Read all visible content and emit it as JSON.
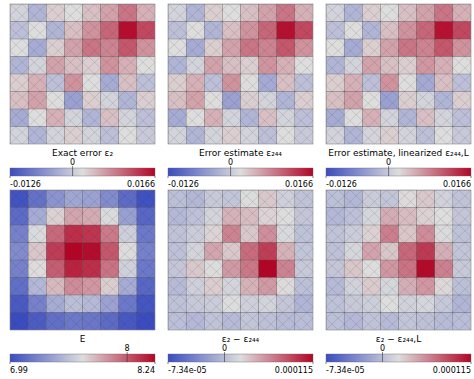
{
  "chart_data": [
    {
      "type": "heatmap",
      "title": "Exact error ε₂",
      "cells": [
        [
          0.001,
          -0.002,
          0.003,
          0.002,
          0.004,
          0.006,
          0.009,
          0.005
        ],
        [
          -0.001,
          0.002,
          -0.002,
          0.004,
          0.007,
          0.01,
          0.016,
          0.012
        ],
        [
          0.002,
          -0.003,
          0.003,
          0.006,
          0.009,
          0.008,
          0.011,
          0.007
        ],
        [
          -0.002,
          0.001,
          0.006,
          0.004,
          0.003,
          0.007,
          0.005,
          0.002
        ],
        [
          0.003,
          0.005,
          -0.001,
          0.007,
          0.002,
          -0.003,
          0.004,
          -0.001
        ],
        [
          0.004,
          0.006,
          0.002,
          -0.004,
          0.003,
          0.001,
          -0.002,
          0.003
        ],
        [
          -0.003,
          0.002,
          0.005,
          0.001,
          -0.002,
          0.004,
          0.001,
          -0.001
        ],
        [
          0.001,
          -0.002,
          0.001,
          0.003,
          0.001,
          -0.001,
          0.002,
          0.0
        ]
      ],
      "colorbar": {
        "range": [
          -0.0126,
          0.0166
        ],
        "ticks": [
          -0.0126,
          0,
          0.0166
        ]
      }
    },
    {
      "type": "heatmap",
      "title": "Error estimate ε₂₄₄",
      "cells": [
        [
          0.001,
          -0.002,
          0.003,
          0.002,
          0.004,
          0.006,
          0.009,
          0.005
        ],
        [
          -0.001,
          0.002,
          -0.002,
          0.004,
          0.007,
          0.01,
          0.0158,
          0.012
        ],
        [
          0.002,
          -0.003,
          0.003,
          0.006,
          0.009,
          0.008,
          0.011,
          0.007
        ],
        [
          -0.002,
          0.001,
          0.006,
          0.004,
          0.003,
          0.0069,
          0.005,
          0.002
        ],
        [
          0.003,
          0.005,
          -0.001,
          0.007,
          0.002,
          -0.0031,
          0.004,
          -0.001
        ],
        [
          0.004,
          0.006,
          0.002,
          -0.004,
          0.003,
          0.001,
          -0.002,
          0.003
        ],
        [
          -0.003,
          0.002,
          0.005,
          0.001,
          -0.002,
          0.004,
          0.001,
          -0.001
        ],
        [
          0.001,
          -0.002,
          0.001,
          0.003,
          0.001,
          -0.001,
          0.002,
          0.0
        ]
      ],
      "colorbar": {
        "range": [
          -0.0126,
          0.0166
        ],
        "ticks": [
          -0.0126,
          0,
          0.0166
        ]
      }
    },
    {
      "type": "heatmap",
      "title": "Error estimate, linearized ε₂₄₄,L",
      "cells": [
        [
          0.001,
          -0.002,
          0.003,
          0.002,
          0.004,
          0.006,
          0.009,
          0.005
        ],
        [
          -0.001,
          0.002,
          -0.002,
          0.004,
          0.007,
          0.01,
          0.0157,
          0.012
        ],
        [
          0.002,
          -0.003,
          0.003,
          0.006,
          0.009,
          0.008,
          0.011,
          0.007
        ],
        [
          -0.002,
          0.001,
          0.006,
          0.004,
          0.003,
          0.0068,
          0.005,
          0.002
        ],
        [
          0.003,
          0.005,
          -0.001,
          0.007,
          0.002,
          -0.0032,
          0.004,
          -0.001
        ],
        [
          0.004,
          0.006,
          0.002,
          -0.004,
          0.003,
          0.001,
          -0.002,
          0.003
        ],
        [
          -0.003,
          0.002,
          0.005,
          0.001,
          -0.002,
          0.004,
          0.001,
          -0.001
        ],
        [
          0.001,
          -0.002,
          0.001,
          0.003,
          0.001,
          -0.001,
          0.002,
          0.0
        ]
      ],
      "colorbar": {
        "range": [
          -0.0126,
          0.0166
        ],
        "ticks": [
          -0.0126,
          0,
          0.0166
        ]
      }
    },
    {
      "type": "heatmap",
      "title": "E",
      "cells": [
        [
          7.02,
          7.15,
          7.3,
          7.38,
          7.36,
          7.26,
          7.12,
          7.01
        ],
        [
          7.12,
          7.4,
          7.65,
          7.78,
          7.76,
          7.6,
          7.35,
          7.1
        ],
        [
          7.22,
          7.6,
          7.95,
          8.12,
          8.1,
          7.9,
          7.55,
          7.18
        ],
        [
          7.26,
          7.68,
          8.08,
          8.24,
          8.22,
          8.0,
          7.62,
          7.22
        ],
        [
          7.22,
          7.62,
          7.98,
          8.15,
          8.12,
          7.92,
          7.56,
          7.18
        ],
        [
          7.14,
          7.45,
          7.72,
          7.85,
          7.82,
          7.66,
          7.4,
          7.1
        ],
        [
          7.05,
          7.22,
          7.4,
          7.48,
          7.46,
          7.36,
          7.18,
          7.03
        ],
        [
          6.99,
          7.06,
          7.14,
          7.18,
          7.17,
          7.12,
          7.04,
          6.99
        ]
      ],
      "colorbar": {
        "range": [
          6.99,
          8.24
        ],
        "ticks": [
          6.99,
          8,
          8.24
        ]
      }
    },
    {
      "type": "heatmap",
      "title": "ε₂ − ε₂₄₄",
      "cells": [
        [
          1e-06,
          -4e-06,
          8e-06,
          5e-06,
          2e-05,
          3e-05,
          1.2e-05,
          4e-06
        ],
        [
          -3e-06,
          2e-06,
          1.5e-05,
          4e-05,
          3.5e-05,
          2.5e-05,
          2e-05,
          6e-06
        ],
        [
          4e-06,
          1e-05,
          2.5e-05,
          6e-05,
          3e-05,
          5.5e-05,
          1.8e-05,
          3e-06
        ],
        [
          2e-06,
          1.5e-05,
          4.5e-05,
          3e-05,
          7e-05,
          9e-05,
          4e-05,
          5e-06
        ],
        [
          6e-06,
          3e-05,
          2e-05,
          5e-05,
          6.5e-05,
          0.000115,
          6e-05,
          8e-06
        ],
        [
          -2e-06,
          1.2e-05,
          2.8e-05,
          1.5e-05,
          4e-05,
          5e-05,
          2.2e-05,
          1e-06
        ],
        [
          3e-06,
          8e-06,
          1e-05,
          2e-05,
          1.2e-05,
          1.5e-05,
          6e-06,
          -5e-06
        ],
        [
          1e-06,
          -3e-06,
          4e-06,
          -2e-06,
          5e-06,
          2e-06,
          -1e-06,
          0
        ]
      ],
      "colorbar": {
        "range": [
          -7.34e-05,
          0.000115
        ],
        "ticks": [
          {
            "value": -7.34e-05,
            "label": "-7.34e-05"
          },
          0,
          0.000115
        ]
      }
    },
    {
      "type": "heatmap",
      "title": "ε₂ − ε₂₄₄,L",
      "cells": [
        [
          1e-06,
          -4e-06,
          9e-06,
          5e-06,
          2.2e-05,
          3e-05,
          1.3e-05,
          4e-06
        ],
        [
          -3e-06,
          2e-06,
          1.6e-05,
          4.2e-05,
          3.5e-05,
          2.6e-05,
          2.1e-05,
          6e-06
        ],
        [
          4e-06,
          1e-05,
          2.6e-05,
          6.2e-05,
          3.1e-05,
          5.6e-05,
          1.9e-05,
          3e-06
        ],
        [
          2e-06,
          1.6e-05,
          4.6e-05,
          3.1e-05,
          7.2e-05,
          9.2e-05,
          4.1e-05,
          5e-06
        ],
        [
          6e-06,
          3.1e-05,
          2.1e-05,
          5.1e-05,
          6.7e-05,
          0.000113,
          6.1e-05,
          8e-06
        ],
        [
          -2e-06,
          1.3e-05,
          2.9e-05,
          1.6e-05,
          4.1e-05,
          5.1e-05,
          2.3e-05,
          1e-06
        ],
        [
          3e-06,
          8e-06,
          1.1e-05,
          2.1e-05,
          1.3e-05,
          1.6e-05,
          7e-06,
          -5e-06
        ],
        [
          1e-06,
          -3e-06,
          4e-06,
          -2e-06,
          5e-06,
          2e-06,
          -1e-06,
          0
        ]
      ],
      "colorbar": {
        "range": [
          -7.34e-05,
          0.000115
        ],
        "ticks": [
          {
            "value": -7.34e-05,
            "label": "-7.34e-05"
          },
          0,
          0.000115
        ]
      }
    }
  ]
}
